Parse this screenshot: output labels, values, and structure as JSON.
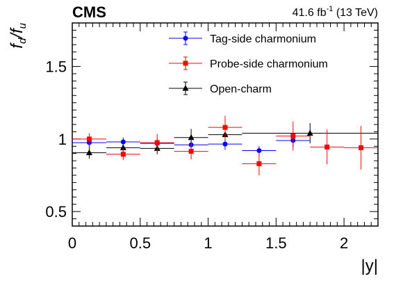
{
  "header": {
    "experiment": "CMS",
    "lumi_value": "41.6 fb",
    "lumi_exp": "-1",
    "energy": " (13 TeV)"
  },
  "chart_data": {
    "type": "scatter",
    "title": "",
    "xlabel": "|y|",
    "ylabel": {
      "f": "f",
      "d": "d",
      "slash": "/",
      "u": "u"
    },
    "xlim": [
      0,
      2.25
    ],
    "ylim": [
      0.4,
      1.8
    ],
    "grid": false,
    "legend_position": "top-right",
    "x_ticks": [
      {
        "value": 0,
        "label": "0"
      },
      {
        "value": 0.5,
        "label": "0.5"
      },
      {
        "value": 1,
        "label": "1"
      },
      {
        "value": 1.5,
        "label": "1.5"
      },
      {
        "value": 2,
        "label": "2"
      }
    ],
    "y_ticks": [
      {
        "value": 0.5,
        "label": "0.5"
      },
      {
        "value": 1,
        "label": "1"
      },
      {
        "value": 1.5,
        "label": "1.5"
      }
    ],
    "series": [
      {
        "name": "Tag-side charmonium",
        "color": "#0000ff",
        "marker": "circle",
        "points": [
          {
            "x": 0.125,
            "xerr": 0.125,
            "y": 0.975,
            "yerr": 0.035
          },
          {
            "x": 0.375,
            "xerr": 0.125,
            "y": 0.98,
            "yerr": 0.03
          },
          {
            "x": 0.625,
            "xerr": 0.125,
            "y": 0.97,
            "yerr": 0.03
          },
          {
            "x": 0.875,
            "xerr": 0.125,
            "y": 0.96,
            "yerr": 0.04
          },
          {
            "x": 1.125,
            "xerr": 0.125,
            "y": 0.965,
            "yerr": 0.04
          },
          {
            "x": 1.375,
            "xerr": 0.125,
            "y": 0.92,
            "yerr": 0.03
          },
          {
            "x": 1.625,
            "xerr": 0.125,
            "y": 0.99,
            "yerr": 0.045
          }
        ]
      },
      {
        "name": "Probe-side charmonium",
        "color": "#ff0000",
        "marker": "square",
        "points": [
          {
            "x": 0.125,
            "xerr": 0.125,
            "y": 1.0,
            "yerr": 0.04
          },
          {
            "x": 0.375,
            "xerr": 0.125,
            "y": 0.895,
            "yerr": 0.04
          },
          {
            "x": 0.625,
            "xerr": 0.125,
            "y": 0.975,
            "yerr": 0.06
          },
          {
            "x": 0.875,
            "xerr": 0.125,
            "y": 0.915,
            "yerr": 0.055
          },
          {
            "x": 1.125,
            "xerr": 0.125,
            "y": 1.08,
            "yerr": 0.08
          },
          {
            "x": 1.375,
            "xerr": 0.125,
            "y": 0.83,
            "yerr": 0.08
          },
          {
            "x": 1.625,
            "xerr": 0.125,
            "y": 1.02,
            "yerr": 0.1
          },
          {
            "x": 1.875,
            "xerr": 0.125,
            "y": 0.945,
            "yerr": 0.12
          },
          {
            "x": 2.125,
            "xerr": 0.125,
            "y": 0.94,
            "yerr": 0.15
          }
        ]
      },
      {
        "name": "Open-charm",
        "color": "#000000",
        "marker": "triangle",
        "points": [
          {
            "x": 0.125,
            "xerr": 0.125,
            "y": 0.905,
            "yerr": 0.04
          },
          {
            "x": 0.375,
            "xerr": 0.125,
            "y": 0.94,
            "yerr": 0.04
          },
          {
            "x": 0.625,
            "xerr": 0.125,
            "y": 0.935,
            "yerr": 0.04
          },
          {
            "x": 0.875,
            "xerr": 0.125,
            "y": 1.01,
            "yerr": 0.06
          },
          {
            "x": 1.125,
            "xerr": 0.125,
            "y": 1.03,
            "yerr": 0.06
          },
          {
            "x": 1.75,
            "xerr": 0.5,
            "y": 1.04,
            "yerr": 0.07
          }
        ]
      }
    ]
  }
}
